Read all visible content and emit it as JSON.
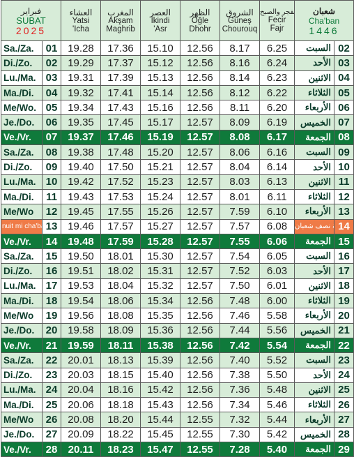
{
  "header": {
    "gregorian_month_ar": "فبراير",
    "gregorian_month": "SUBAT",
    "gregorian_year": "2025",
    "isha": {
      "ar": "العشاء",
      "lat1": "Yatsi",
      "lat2": "'Icha"
    },
    "maghrib": {
      "ar": "المغرب",
      "lat1": "Akşam",
      "lat2": "Maghrib"
    },
    "asr": {
      "ar": "العصر",
      "lat1": "İkindi",
      "lat2": "'Asr"
    },
    "dhuhr": {
      "ar": "الظهر",
      "lat1": "Öğle",
      "lat2": "Dhohr"
    },
    "sunrise": {
      "ar": "الشروق",
      "lat1": "Güneş",
      "lat2": "Chourouq"
    },
    "fajr": {
      "ar": "الفجر والصبح",
      "lat1": "Fecir",
      "lat2": "Fajr"
    },
    "hijri_month_ar": "شعبان",
    "hijri_month": "Cha'ban",
    "hijri_year": "1446"
  },
  "rows": [
    {
      "gday": "Sa./Za.",
      "gnum": "01",
      "isha": "19.28",
      "maghrib": "17.36",
      "asr": "15.10",
      "dhuhr": "12.56",
      "sunrise": "8.17",
      "fajr": "6.25",
      "hday": "السبت",
      "hnum": "02",
      "type": "normal"
    },
    {
      "gday": "Di./Zo.",
      "gnum": "02",
      "isha": "19.29",
      "maghrib": "17.37",
      "asr": "15.12",
      "dhuhr": "12.56",
      "sunrise": "8.16",
      "fajr": "6.24",
      "hday": "الأحد",
      "hnum": "03",
      "type": "normal"
    },
    {
      "gday": "Lu./Ma.",
      "gnum": "03",
      "isha": "19.31",
      "maghrib": "17.39",
      "asr": "15.13",
      "dhuhr": "12.56",
      "sunrise": "8.14",
      "fajr": "6.23",
      "hday": "الاثنين",
      "hnum": "04",
      "type": "normal"
    },
    {
      "gday": "Ma./Di.",
      "gnum": "04",
      "isha": "19.32",
      "maghrib": "17.41",
      "asr": "15.14",
      "dhuhr": "12.56",
      "sunrise": "8.12",
      "fajr": "6.22",
      "hday": "الثلاثاء",
      "hnum": "05",
      "type": "normal"
    },
    {
      "gday": "Me/Wo.",
      "gnum": "05",
      "isha": "19.34",
      "maghrib": "17.43",
      "asr": "15.16",
      "dhuhr": "12.56",
      "sunrise": "8.11",
      "fajr": "6.20",
      "hday": "الأربعاء",
      "hnum": "06",
      "type": "normal"
    },
    {
      "gday": "Je./Do.",
      "gnum": "06",
      "isha": "19.35",
      "maghrib": "17.45",
      "asr": "15.17",
      "dhuhr": "12.57",
      "sunrise": "8.09",
      "fajr": "6.19",
      "hday": "الخميس",
      "hnum": "07",
      "type": "normal"
    },
    {
      "gday": "Ve./Vr.",
      "gnum": "07",
      "isha": "19.37",
      "maghrib": "17.46",
      "asr": "15.19",
      "dhuhr": "12.57",
      "sunrise": "8.08",
      "fajr": "6.17",
      "hday": "الجمعة",
      "hnum": "08",
      "type": "friday"
    },
    {
      "gday": "Sa./Za.",
      "gnum": "08",
      "isha": "19.38",
      "maghrib": "17.48",
      "asr": "15.20",
      "dhuhr": "12.57",
      "sunrise": "8.06",
      "fajr": "6.16",
      "hday": "السبت",
      "hnum": "09",
      "type": "normal"
    },
    {
      "gday": "Di./Zo.",
      "gnum": "09",
      "isha": "19.40",
      "maghrib": "17.50",
      "asr": "15.21",
      "dhuhr": "12.57",
      "sunrise": "8.04",
      "fajr": "6.14",
      "hday": "الأحد",
      "hnum": "10",
      "type": "normal"
    },
    {
      "gday": "Lu./Ma.",
      "gnum": "10",
      "isha": "19.42",
      "maghrib": "17.52",
      "asr": "15.23",
      "dhuhr": "12.57",
      "sunrise": "8.03",
      "fajr": "6.13",
      "hday": "الاثنين",
      "hnum": "11",
      "type": "normal"
    },
    {
      "gday": "Ma./Di.",
      "gnum": "11",
      "isha": "19.43",
      "maghrib": "17.53",
      "asr": "15.24",
      "dhuhr": "12.57",
      "sunrise": "8.01",
      "fajr": "6.11",
      "hday": "الثلاثاء",
      "hnum": "12",
      "type": "normal"
    },
    {
      "gday": "Me/Wo",
      "gnum": "12",
      "isha": "19.45",
      "maghrib": "17.55",
      "asr": "15.26",
      "dhuhr": "12.57",
      "sunrise": "7.59",
      "fajr": "6.10",
      "hday": "الأربعاء",
      "hnum": "13",
      "type": "normal"
    },
    {
      "gday": "nuit mi cha'ban",
      "gnum": "13",
      "isha": "19.46",
      "maghrib": "17.57",
      "asr": "15.27",
      "dhuhr": "12.57",
      "sunrise": "7.57",
      "fajr": "6.08",
      "hday": "ليلة نصف شعبان",
      "hnum": "14",
      "type": "special"
    },
    {
      "gday": "Ve./Vr.",
      "gnum": "14",
      "isha": "19.48",
      "maghrib": "17.59",
      "asr": "15.28",
      "dhuhr": "12.57",
      "sunrise": "7.55",
      "fajr": "6.06",
      "hday": "الجمعة",
      "hnum": "15",
      "type": "friday"
    },
    {
      "gday": "Sa./Za.",
      "gnum": "15",
      "isha": "19.50",
      "maghrib": "18.01",
      "asr": "15.30",
      "dhuhr": "12.57",
      "sunrise": "7.54",
      "fajr": "6.05",
      "hday": "السبت",
      "hnum": "16",
      "type": "normal"
    },
    {
      "gday": "Di./Zo.",
      "gnum": "16",
      "isha": "19.51",
      "maghrib": "18.02",
      "asr": "15.31",
      "dhuhr": "12.57",
      "sunrise": "7.52",
      "fajr": "6.03",
      "hday": "الأحد",
      "hnum": "17",
      "type": "normal"
    },
    {
      "gday": "Lu./Ma.",
      "gnum": "17",
      "isha": "19.53",
      "maghrib": "18.04",
      "asr": "15.32",
      "dhuhr": "12.57",
      "sunrise": "7.50",
      "fajr": "6.01",
      "hday": "الاثنين",
      "hnum": "18",
      "type": "normal"
    },
    {
      "gday": "Ma./Di.",
      "gnum": "18",
      "isha": "19.54",
      "maghrib": "18.06",
      "asr": "15.34",
      "dhuhr": "12.56",
      "sunrise": "7.48",
      "fajr": "6.00",
      "hday": "الثلاثاء",
      "hnum": "19",
      "type": "normal"
    },
    {
      "gday": "Me/Wo",
      "gnum": "19",
      "isha": "19.56",
      "maghrib": "18.08",
      "asr": "15.35",
      "dhuhr": "12.56",
      "sunrise": "7.46",
      "fajr": "5.58",
      "hday": "الأربعاء",
      "hnum": "20",
      "type": "normal"
    },
    {
      "gday": "Je./Do.",
      "gnum": "20",
      "isha": "19.58",
      "maghrib": "18.09",
      "asr": "15.36",
      "dhuhr": "12.56",
      "sunrise": "7.44",
      "fajr": "5.56",
      "hday": "الخميس",
      "hnum": "21",
      "type": "normal"
    },
    {
      "gday": "Ve./Vr.",
      "gnum": "21",
      "isha": "19.59",
      "maghrib": "18.11",
      "asr": "15.38",
      "dhuhr": "12.56",
      "sunrise": "7.42",
      "fajr": "5.54",
      "hday": "الجمعة",
      "hnum": "22",
      "type": "friday"
    },
    {
      "gday": "Sa./Za.",
      "gnum": "22",
      "isha": "20.01",
      "maghrib": "18.13",
      "asr": "15.39",
      "dhuhr": "12.56",
      "sunrise": "7.40",
      "fajr": "5.52",
      "hday": "السبت",
      "hnum": "23",
      "type": "normal"
    },
    {
      "gday": "Di./Zo.",
      "gnum": "23",
      "isha": "20.03",
      "maghrib": "18.15",
      "asr": "15.40",
      "dhuhr": "12.56",
      "sunrise": "7.38",
      "fajr": "5.50",
      "hday": "الأحد",
      "hnum": "24",
      "type": "normal"
    },
    {
      "gday": "Lu./Ma.",
      "gnum": "24",
      "isha": "20.04",
      "maghrib": "18.16",
      "asr": "15.42",
      "dhuhr": "12.56",
      "sunrise": "7.36",
      "fajr": "5.48",
      "hday": "الاثنين",
      "hnum": "25",
      "type": "normal"
    },
    {
      "gday": "Ma./Di.",
      "gnum": "25",
      "isha": "20.06",
      "maghrib": "18.18",
      "asr": "15.43",
      "dhuhr": "12.56",
      "sunrise": "7.34",
      "fajr": "5.46",
      "hday": "الثلاثاء",
      "hnum": "26",
      "type": "normal"
    },
    {
      "gday": "Me/Wo",
      "gnum": "26",
      "isha": "20.08",
      "maghrib": "18.20",
      "asr": "15.44",
      "dhuhr": "12.55",
      "sunrise": "7.32",
      "fajr": "5.44",
      "hday": "الأربعاء",
      "hnum": "27",
      "type": "normal"
    },
    {
      "gday": "Je./Do.",
      "gnum": "27",
      "isha": "20.09",
      "maghrib": "18.22",
      "asr": "15.45",
      "dhuhr": "12.55",
      "sunrise": "7.30",
      "fajr": "5.42",
      "hday": "الخميس",
      "hnum": "28",
      "type": "normal"
    },
    {
      "gday": "Ve./Vr.",
      "gnum": "28",
      "isha": "20.11",
      "maghrib": "18.23",
      "asr": "15.47",
      "dhuhr": "12.55",
      "sunrise": "7.28",
      "fajr": "5.40",
      "hday": "الجمعة",
      "hnum": "29",
      "type": "friday"
    }
  ]
}
